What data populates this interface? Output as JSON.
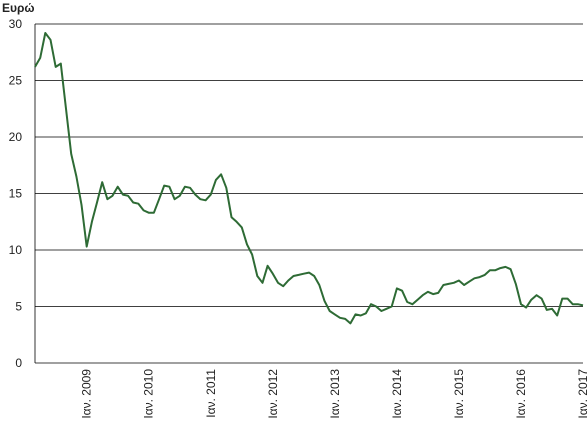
{
  "chart_data": {
    "type": "line",
    "ylabel": "Ευρώ",
    "categories": [
      null,
      null,
      null,
      null,
      null,
      null,
      null,
      null,
      null,
      null,
      "Ιαν. 2009",
      null,
      null,
      null,
      null,
      null,
      null,
      null,
      null,
      null,
      null,
      null,
      "Ιαν. 2010",
      null,
      null,
      null,
      null,
      null,
      null,
      null,
      null,
      null,
      null,
      null,
      "Ιαν. 2011",
      null,
      null,
      null,
      null,
      null,
      null,
      null,
      null,
      null,
      null,
      null,
      "Ιαν. 2012",
      null,
      null,
      null,
      null,
      null,
      null,
      null,
      null,
      null,
      null,
      null,
      "Ιαν. 2013",
      null,
      null,
      null,
      null,
      null,
      null,
      null,
      null,
      null,
      null,
      null,
      "Ιαν. 2014",
      null,
      null,
      null,
      null,
      null,
      null,
      null,
      null,
      null,
      null,
      null,
      "Ιαν. 2015",
      null,
      null,
      null,
      null,
      null,
      null,
      null,
      null,
      null,
      null,
      null,
      "Ιαν. 2016",
      null,
      null,
      null,
      null,
      null,
      null,
      null,
      null,
      null,
      null,
      null,
      "Ιαν. 2017"
    ],
    "series": [
      {
        "name": "Ευρώ",
        "color": "#2e6b35",
        "values": [
          26.2,
          27,
          29.2,
          28.6,
          26.2,
          26.5,
          22.5,
          18.5,
          16.5,
          14,
          10.3,
          12.5,
          14.2,
          16,
          14.5,
          14.8,
          15.6,
          14.9,
          14.8,
          14.2,
          14.1,
          13.5,
          13.3,
          13.3,
          14.5,
          15.7,
          15.6,
          14.5,
          14.8,
          15.6,
          15.5,
          14.9,
          14.5,
          14.4,
          14.9,
          16.2,
          16.7,
          15.5,
          12.9,
          12.5,
          12,
          10.5,
          9.6,
          7.7,
          7.1,
          8.6,
          7.9,
          7.1,
          6.8,
          7.3,
          7.7,
          7.8,
          7.9,
          8,
          7.7,
          6.9,
          5.5,
          4.6,
          4.3,
          4,
          3.9,
          3.5,
          4.3,
          4.2,
          4.4,
          5.2,
          5,
          4.6,
          4.8,
          5,
          6.6,
          6.4,
          5.4,
          5.2,
          5.6,
          6,
          6.3,
          6.1,
          6.2,
          6.9,
          7,
          7.1,
          7.3,
          6.9,
          7.2,
          7.5,
          7.6,
          7.8,
          8.2,
          8.2,
          8.4,
          8.5,
          8.3,
          7,
          5.2,
          4.9,
          5.6,
          6,
          5.7,
          4.7,
          4.8,
          4.2,
          5.7,
          5.7,
          5.2,
          5.2,
          5.1
        ]
      }
    ],
    "ylim": [
      0,
      30
    ],
    "yticks": [
      0,
      5,
      10,
      15,
      20,
      25,
      30
    ],
    "grid": true
  }
}
